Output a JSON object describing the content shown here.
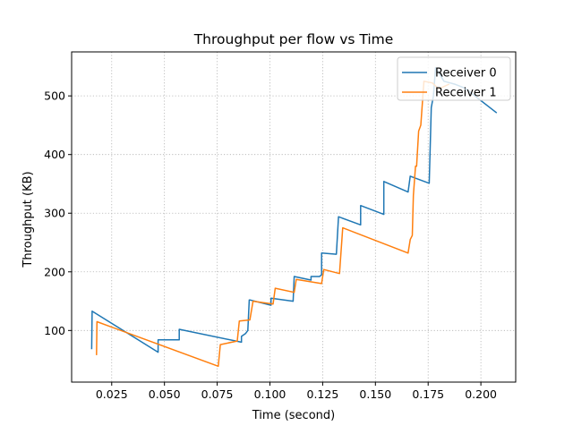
{
  "chart_data": {
    "type": "line",
    "title": "Throughput per flow vs Time",
    "xlabel": "Time (second)",
    "ylabel": "Throughput (KB)",
    "xlim": [
      0.006,
      0.2165
    ],
    "ylim": [
      12,
      575
    ],
    "xticks": [
      "0.025",
      "0.050",
      "0.075",
      "0.100",
      "0.125",
      "0.150",
      "0.175",
      "0.200"
    ],
    "xtick_values": [
      0.025,
      0.05,
      0.075,
      0.1,
      0.125,
      0.15,
      0.175,
      0.2
    ],
    "yticks": [
      "100",
      "200",
      "300",
      "400",
      "500"
    ],
    "ytick_values": [
      100,
      200,
      300,
      400,
      500
    ],
    "grid": true,
    "legend_position": "upper right",
    "series": [
      {
        "name": "Receiver 0",
        "color": "#1f77b4",
        "x": [
          0.0155,
          0.0157,
          0.047,
          0.047,
          0.057,
          0.057,
          0.0865,
          0.0865,
          0.0885,
          0.0895,
          0.0902,
          0.0905,
          0.1005,
          0.1005,
          0.111,
          0.1115,
          0.1195,
          0.1195,
          0.1235,
          0.1245,
          0.1245,
          0.1315,
          0.1325,
          0.143,
          0.143,
          0.154,
          0.154,
          0.1655,
          0.1665,
          0.1755,
          0.1765,
          0.1775,
          0.1785,
          0.1825,
          0.1875,
          0.1925,
          0.2075
        ],
        "y": [
          68,
          133,
          63,
          84,
          84,
          102,
          80,
          90,
          95,
          100,
          152,
          152,
          143,
          155,
          150,
          192,
          186,
          192,
          192,
          195,
          232,
          230,
          294,
          280,
          313,
          298,
          354,
          336,
          363,
          351,
          480,
          500,
          548,
          525,
          520,
          513,
          471
        ]
      },
      {
        "name": "Receiver 1",
        "color": "#ff7f0e",
        "x": [
          0.0178,
          0.018,
          0.0755,
          0.0765,
          0.0845,
          0.0855,
          0.0905,
          0.092,
          0.1015,
          0.1025,
          0.1115,
          0.1125,
          0.1245,
          0.1255,
          0.133,
          0.1345,
          0.1655,
          0.1665,
          0.1675,
          0.168,
          0.169,
          0.1695,
          0.1705,
          0.1715,
          0.173,
          0.177,
          0.18,
          0.185
        ],
        "y": [
          58,
          115,
          39,
          76,
          82,
          116,
          118,
          150,
          145,
          172,
          165,
          187,
          180,
          204,
          197,
          275,
          232,
          255,
          262,
          330,
          380,
          380,
          440,
          450,
          525,
          522,
          512,
          520
        ]
      }
    ]
  }
}
